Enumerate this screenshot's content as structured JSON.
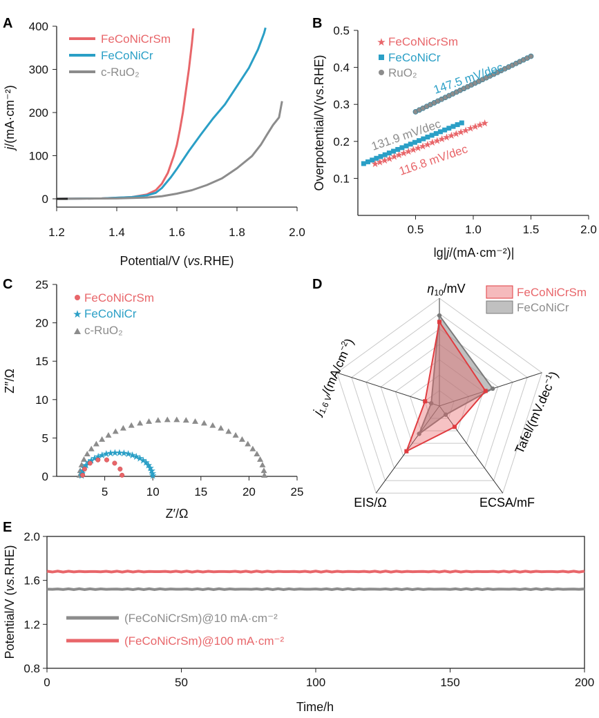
{
  "colors": {
    "FeCoNiCrSm": "#e8666a",
    "FeCoNiCr": "#2a9fc6",
    "RuO2": "#8c8c8c",
    "axis": "#222222"
  },
  "chart_data": [
    {
      "panel": "A",
      "type": "line",
      "xlabel_pre": "Potential/V (",
      "xlabel_it": "vs.",
      "xlabel_post": "RHE)",
      "ylabel_it": "j",
      "ylabel_post": "/(mA·cm⁻²)",
      "xlim": [
        1.2,
        2.0
      ],
      "ylim": [
        0,
        400
      ],
      "xticks": [
        "1.2",
        "1.4",
        "1.6",
        "1.8",
        "2.0"
      ],
      "yticks": [
        "0",
        "100",
        "200",
        "300",
        "400"
      ],
      "legend_position": "top-left",
      "series": [
        {
          "name": "FeCoNiCrSm",
          "key": "FeCoNiCrSm",
          "x": [
            1.2,
            1.35,
            1.45,
            1.5,
            1.53,
            1.55,
            1.57,
            1.59,
            1.6,
            1.61,
            1.62,
            1.63,
            1.64,
            1.65,
            1.655
          ],
          "y": [
            0,
            1,
            4,
            10,
            20,
            35,
            60,
            100,
            125,
            160,
            200,
            250,
            300,
            360,
            395
          ]
        },
        {
          "name": "FeCoNiCr",
          "key": "FeCoNiCr",
          "x": [
            1.2,
            1.35,
            1.45,
            1.5,
            1.53,
            1.55,
            1.58,
            1.6,
            1.64,
            1.68,
            1.72,
            1.76,
            1.8,
            1.84,
            1.87,
            1.89,
            1.895
          ],
          "y": [
            0,
            1,
            4,
            8,
            14,
            25,
            50,
            70,
            110,
            150,
            185,
            220,
            260,
            305,
            345,
            385,
            395
          ]
        },
        {
          "name": "c-RuO₂",
          "key": "RuO2",
          "x": [
            1.2,
            1.4,
            1.5,
            1.55,
            1.6,
            1.65,
            1.7,
            1.75,
            1.8,
            1.85,
            1.88,
            1.9,
            1.92,
            1.94,
            1.95
          ],
          "y": [
            0,
            1,
            3,
            6,
            12,
            20,
            32,
            48,
            70,
            100,
            125,
            150,
            170,
            190,
            225
          ]
        }
      ]
    },
    {
      "panel": "B",
      "type": "scatter",
      "xlabel_pre": "lg|",
      "xlabel_it": "j",
      "xlabel_post": "/(mA·cm⁻²)|",
      "ylabel": "Overpotential/V(vs.RHE)",
      "xlim": [
        0,
        2.0
      ],
      "ylim": [
        0,
        0.5
      ],
      "xticks": [
        "0.5",
        "1.0",
        "1.5",
        "2.0"
      ],
      "yticks": [
        "0.1",
        "0.2",
        "0.3",
        "0.4",
        "0.5"
      ],
      "legend_position": "top-left",
      "series": [
        {
          "name": "FeCoNiCrSm",
          "key": "FeCoNiCrSm",
          "marker": "star",
          "x_range": [
            0.15,
            1.1
          ],
          "y_range": [
            0.14,
            0.25
          ]
        },
        {
          "name": "FeCoNiCr",
          "key": "FeCoNiCr",
          "marker": "square",
          "x_range": [
            0.05,
            0.9
          ],
          "y_range": [
            0.14,
            0.25
          ]
        },
        {
          "name": "RuO₂",
          "key": "RuO2",
          "marker": "circle",
          "x_range": [
            0.5,
            1.5
          ],
          "y_range": [
            0.28,
            0.43
          ]
        }
      ],
      "annotations": [
        "147.5 mV/dec",
        "131.9 mV/dec",
        "116.8 mV/dec"
      ]
    },
    {
      "panel": "C",
      "type": "scatter",
      "xlabel": "Z′/Ω",
      "ylabel": "Z″/Ω",
      "xlim": [
        0,
        25
      ],
      "ylim": [
        0,
        25
      ],
      "xticks": [
        "5",
        "10",
        "15",
        "20",
        "25"
      ],
      "yticks": [
        "0",
        "5",
        "10",
        "15",
        "20",
        "25"
      ],
      "legend_position": "top-left",
      "series": [
        {
          "name": "FeCoNiCrSm",
          "key": "FeCoNiCrSm",
          "marker": "circle",
          "x_range": [
            2.7,
            6.8
          ],
          "peak": 2.2
        },
        {
          "name": "FeCoNiCr",
          "key": "FeCoNiCr",
          "marker": "star",
          "x_range": [
            2.6,
            10.0
          ],
          "peak": 3.1
        },
        {
          "name": "c-RuO₂",
          "key": "RuO2",
          "marker": "triangle",
          "x_range": [
            2.4,
            21.6
          ],
          "peak": 7.4
        }
      ]
    },
    {
      "panel": "D",
      "type": "radar",
      "axes": [
        "η10/mV",
        "Tafel/(mV.dec⁻¹)",
        "ECSA/mF",
        "EIS/Ω",
        "j1.6 V/(mA/cm⁻²)"
      ],
      "axis_labels": {
        "eta_sym": "η",
        "eta_sub": "10",
        "eta_post": "/mV",
        "tafel_pre": "Tafel/(mV.dec",
        "tafel_sup": "−1",
        "tafel_post": ")",
        "ecsa": "ECSA/mF",
        "eis": "EIS/Ω",
        "j_sym": "j",
        "j_sub": "1.6 V",
        "j_post": "/(mA/cm",
        "j_sup": "−2",
        "j_end": ")"
      },
      "legend_position": "top-right",
      "series": [
        {
          "name": "FeCoNiCrSm",
          "key": "FeCoNiCrSm",
          "values": [
            0.78,
            0.45,
            0.24,
            0.52,
            0.14
          ]
        },
        {
          "name": "FeCoNiCr",
          "key": "FeCoNiCr",
          "values": [
            0.84,
            0.52,
            0.1,
            0.32,
            0.08
          ]
        }
      ]
    },
    {
      "panel": "E",
      "type": "line",
      "xlabel": "Time/h",
      "ylabel_pre": "Potential/V (",
      "ylabel_it": "vs.",
      "ylabel_post": "RHE)",
      "xlim": [
        0,
        200
      ],
      "ylim": [
        0.8,
        2.0
      ],
      "xticks": [
        "0",
        "50",
        "100",
        "150",
        "200"
      ],
      "yticks": [
        "0.8",
        "1.2",
        "1.6",
        "2.0"
      ],
      "legend_position": "bottom-left",
      "series": [
        {
          "name": "(FeCoNiCrSm)@10 mA·cm⁻²",
          "key": "RuO2",
          "value": 1.52
        },
        {
          "name": "(FeCoNiCrSm)@100 mA·cm⁻²",
          "key": "FeCoNiCrSm",
          "value": 1.68
        }
      ]
    }
  ],
  "panels": [
    "A",
    "B",
    "C",
    "D",
    "E"
  ]
}
